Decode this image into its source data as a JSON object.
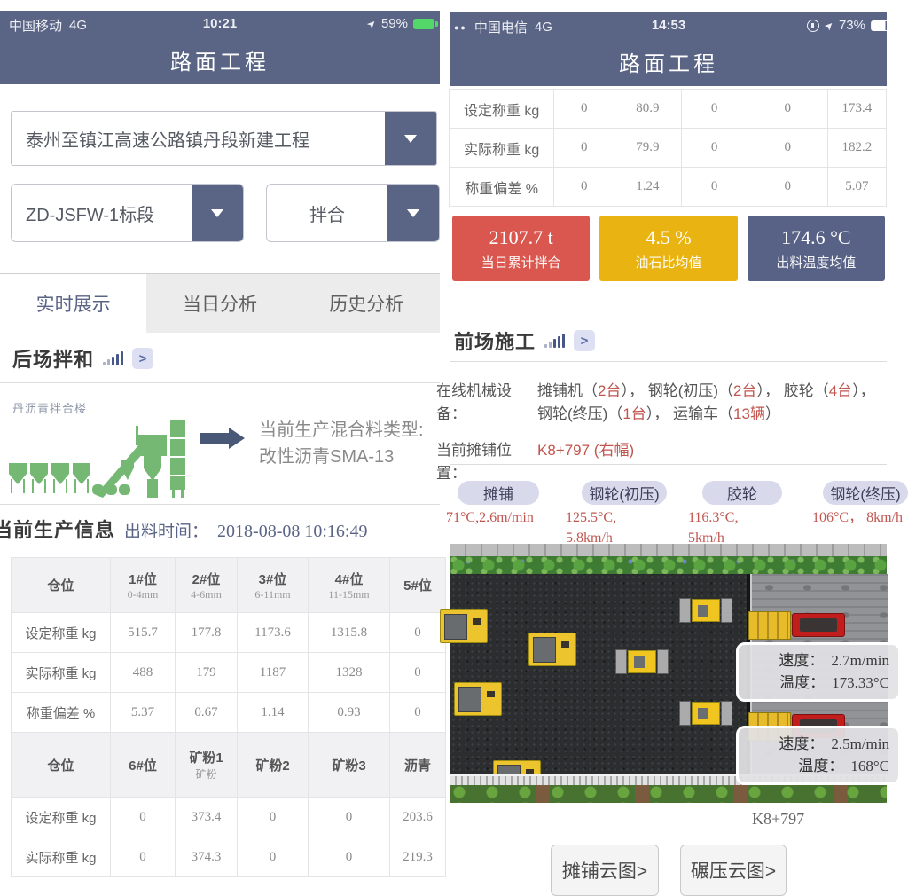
{
  "left_screen": {
    "status_bar": {
      "carrier": "中国移动",
      "network": "4G",
      "time": "10:21",
      "battery_percent": "59%"
    },
    "title": "路面工程",
    "dropdowns": {
      "project": "泰州至镇江高速公路镇丹段新建工程",
      "section": "ZD-JSFW-1标段",
      "mode": "拌合"
    },
    "tabs": [
      {
        "label": "实时展示"
      },
      {
        "label": "当日分析"
      },
      {
        "label": "历史分析"
      }
    ],
    "mixing_section_title": "后场拌和",
    "plant_label": "丹沥青拌合楼",
    "mix_type_label": "当前生产混合料类型:",
    "mix_type_value": "改性沥青SMA-13",
    "production_title": "当前生产信息",
    "discharge_time_label": "出料时间：",
    "discharge_time_value": "2018-08-08 10:16:49",
    "table": {
      "col_widths": "112,73,70,80,92,63",
      "sections": [
        {
          "headers": [
            {
              "main": "仓位",
              "sub": ""
            },
            {
              "main": "1#位",
              "sub": "0-4mm"
            },
            {
              "main": "2#位",
              "sub": "4-6mm"
            },
            {
              "main": "3#位",
              "sub": "6-11mm"
            },
            {
              "main": "4#位",
              "sub": "11-15mm"
            },
            {
              "main": "5#位",
              "sub": ""
            }
          ],
          "rows": [
            [
              "设定称重 kg",
              "515.7",
              "177.8",
              "1173.6",
              "1315.8",
              "0"
            ],
            [
              "实际称重 kg",
              "488",
              "179",
              "1187",
              "1328",
              "0"
            ],
            [
              "称重偏差 %",
              "5.37",
              "0.67",
              "1.14",
              "0.93",
              "0"
            ]
          ]
        },
        {
          "headers": [
            {
              "main": "仓位",
              "sub": ""
            },
            {
              "main": "6#位",
              "sub": ""
            },
            {
              "main": "矿粉1",
              "sub": "矿粉"
            },
            {
              "main": "矿粉2",
              "sub": ""
            },
            {
              "main": "矿粉3",
              "sub": ""
            },
            {
              "main": "沥青",
              "sub": ""
            }
          ],
          "rows": [
            [
              "设定称重 kg",
              "0",
              "373.4",
              "0",
              "0",
              "203.6"
            ],
            [
              "实际称重 kg",
              "0",
              "374.3",
              "0",
              "0",
              "219.3"
            ]
          ]
        }
      ]
    }
  },
  "right_screen": {
    "status_bar": {
      "carrier": "中国电信",
      "network": "4G",
      "time": "14:53",
      "battery_percent": "73%"
    },
    "title": "路面工程",
    "table": {
      "col_widths": "118,68,75,75,90,66",
      "sections": [
        {
          "rows": [
            [
              "设定称重 kg",
              "0",
              "80.9",
              "0",
              "0",
              "173.4"
            ],
            [
              "实际称重 kg",
              "0",
              "79.9",
              "0",
              "0",
              "182.2"
            ],
            [
              "称重偏差 %",
              "0",
              "1.24",
              "0",
              "0",
              "5.07"
            ]
          ]
        }
      ]
    },
    "stat_cards": [
      {
        "value": "2107.7 t",
        "label": "当日累计拌合",
        "color": "#d9574f"
      },
      {
        "value": "4.5 %",
        "label": "油石比均值",
        "color": "#e9b411"
      },
      {
        "value": "174.6 °C",
        "label": "出料温度均值",
        "color": "#586286"
      }
    ],
    "construction_section_title": "前场施工",
    "equipment_label": "在线机械设备：",
    "equipment_segments": [
      {
        "t": "摊铺机（"
      },
      {
        "t": "2台",
        "red": true
      },
      {
        "t": "）， 钢轮(初压)（"
      },
      {
        "t": "2台",
        "red": true
      },
      {
        "t": "）， 胶轮（"
      },
      {
        "t": "4台",
        "red": true
      },
      {
        "t": "）， 钢轮(终压)（"
      },
      {
        "t": "1台",
        "red": true
      },
      {
        "t": "）， 运输车（"
      },
      {
        "t": "13辆",
        "red": true
      },
      {
        "t": "）"
      }
    ],
    "paving_position_label": "当前摊铺位置：",
    "paving_position_value": "K8+797 (右幅)",
    "machine_pills": [
      {
        "label": "摊铺",
        "values": [
          "71°C,2.6m/min",
          ""
        ]
      },
      {
        "label": "钢轮(初压)",
        "values": [
          "125.5°C,",
          "5.8km/h"
        ]
      },
      {
        "label": "胶轮",
        "values": [
          "116.3°C,",
          "5km/h"
        ]
      },
      {
        "label": "钢轮(终压)",
        "values": [
          "106°C， 8km/h",
          ""
        ]
      }
    ],
    "map": {
      "tooltips": [
        {
          "speed_label": "速度：",
          "speed_value": "2.7m/min",
          "temp_label": "温度：",
          "temp_value": "173.33°C"
        },
        {
          "speed_label": "速度：",
          "speed_value": "2.5m/min",
          "temp_label": "温度：",
          "temp_value": "168°C"
        }
      ],
      "location_label": "K8+797"
    },
    "buttons": [
      {
        "label": "摊铺云图>"
      },
      {
        "label": "碾压云图>"
      }
    ]
  }
}
